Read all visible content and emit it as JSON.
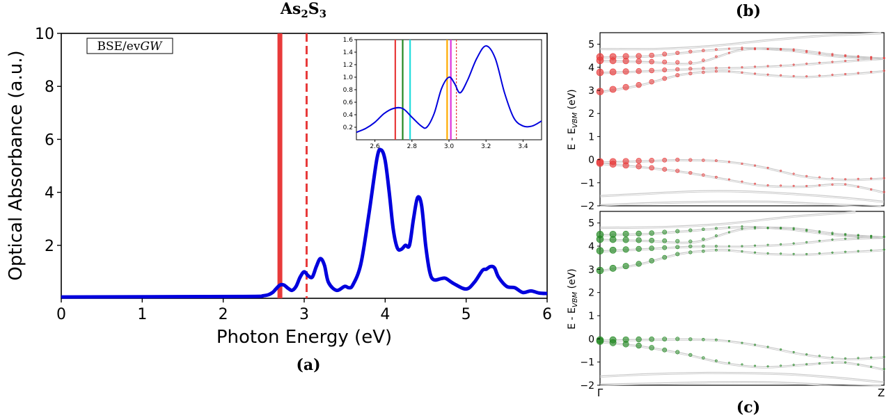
{
  "figure": {
    "title_main": "As",
    "title_sub1": "2",
    "title_mid": "S",
    "title_sub2": "3",
    "label_a": "(a)",
    "label_b": "(b)",
    "label_c": "(c)",
    "method_box": "BSE/ev",
    "method_box_italic": "GW"
  },
  "colors": {
    "spectrum": "#0000dd",
    "red": "#e83a3a",
    "green": "#228822",
    "cyan": "#22dddd",
    "orange": "#ffaa00",
    "violet": "#dd33dd",
    "band": "#c8c8c8"
  },
  "chart_data": [
    {
      "id": "main",
      "type": "line",
      "xlabel": "Photon Energy (eV)",
      "ylabel": "Optical Absorbance (a.u.)",
      "xlim": [
        0,
        6
      ],
      "ylim": [
        0,
        10
      ],
      "xticks": [
        0,
        1,
        2,
        3,
        4,
        5,
        6
      ],
      "yticks": [
        2,
        4,
        6,
        8,
        10
      ],
      "x": [
        0,
        2.2,
        2.5,
        2.6,
        2.65,
        2.7,
        2.75,
        2.8,
        2.85,
        2.9,
        2.95,
        3.0,
        3.05,
        3.1,
        3.15,
        3.2,
        3.25,
        3.3,
        3.4,
        3.5,
        3.55,
        3.6,
        3.7,
        3.8,
        3.9,
        3.95,
        4.0,
        4.05,
        4.1,
        4.15,
        4.2,
        4.25,
        4.3,
        4.35,
        4.4,
        4.45,
        4.5,
        4.55,
        4.6,
        4.7,
        4.75,
        4.85,
        5.0,
        5.1,
        5.2,
        5.25,
        5.3,
        5.35,
        5.4,
        5.5,
        5.6,
        5.7,
        5.8,
        5.9,
        6.0
      ],
      "y": [
        0.05,
        0.07,
        0.1,
        0.2,
        0.35,
        0.5,
        0.5,
        0.38,
        0.3,
        0.45,
        0.8,
        1.0,
        0.85,
        0.8,
        1.2,
        1.5,
        1.25,
        0.6,
        0.3,
        0.45,
        0.4,
        0.5,
        1.3,
        3.2,
        5.3,
        5.6,
        5.2,
        4.0,
        2.6,
        1.9,
        1.85,
        2.0,
        2.0,
        3.0,
        3.8,
        3.5,
        2.0,
        1.0,
        0.7,
        0.75,
        0.75,
        0.55,
        0.35,
        0.6,
        1.05,
        1.1,
        1.2,
        1.15,
        0.8,
        0.45,
        0.4,
        0.22,
        0.28,
        0.2,
        0.18
      ],
      "vlines": [
        {
          "x": 2.7,
          "style": "solid",
          "color": "red"
        },
        {
          "x": 3.03,
          "style": "dashed",
          "color": "red"
        }
      ]
    },
    {
      "id": "inset",
      "type": "line",
      "xlim": [
        2.5,
        3.5
      ],
      "ylim": [
        0,
        1.6
      ],
      "xticks": [
        2.6,
        2.8,
        3.0,
        3.2,
        3.4
      ],
      "yticks": [
        0.2,
        0.4,
        0.6,
        0.8,
        1.0,
        1.2,
        1.4,
        1.6
      ],
      "xtick_labels": [
        "2.6",
        "2.8",
        "3.0",
        "3.2",
        "3.4"
      ],
      "ytick_labels": [
        "0.2",
        "0.4",
        "0.6",
        "0.8",
        "1.0",
        "1.2",
        "1.4",
        "1.6"
      ],
      "x": [
        2.5,
        2.55,
        2.6,
        2.65,
        2.7,
        2.75,
        2.8,
        2.85,
        2.88,
        2.92,
        2.96,
        3.0,
        3.03,
        3.06,
        3.1,
        3.15,
        3.2,
        3.25,
        3.3,
        3.35,
        3.4,
        3.45,
        3.5
      ],
      "y": [
        0.12,
        0.18,
        0.28,
        0.42,
        0.5,
        0.5,
        0.36,
        0.22,
        0.2,
        0.42,
        0.82,
        1.0,
        0.9,
        0.75,
        0.95,
        1.3,
        1.5,
        1.3,
        0.75,
        0.35,
        0.22,
        0.22,
        0.3
      ],
      "vlines": [
        {
          "x": 2.71,
          "style": "solid",
          "color": "red"
        },
        {
          "x": 2.75,
          "style": "solid",
          "color": "green"
        },
        {
          "x": 2.79,
          "style": "solid",
          "color": "cyan"
        },
        {
          "x": 2.99,
          "style": "solid",
          "color": "orange"
        },
        {
          "x": 3.01,
          "style": "solid",
          "color": "violet"
        },
        {
          "x": 3.04,
          "style": "dashed",
          "color": "red"
        }
      ]
    },
    {
      "id": "bands_b",
      "type": "line",
      "ylabel": "E - E",
      "ylabel_sub": "VBM",
      "ylabel_unit": " (eV)",
      "ylim": [
        -2,
        5.5
      ],
      "yticks": [
        -2,
        -1,
        0,
        1,
        2,
        3,
        4,
        5
      ],
      "ytick_labels": [
        "−2",
        "−1",
        "0",
        "1",
        "2",
        "3",
        "4",
        "5"
      ],
      "color_key": "red",
      "bands": [
        [
          4.82,
          4.82,
          4.95,
          5.2,
          5.4,
          5.6
        ],
        [
          4.45,
          4.5,
          4.7,
          4.85,
          4.75,
          4.5,
          4.4
        ],
        [
          4.3,
          4.25,
          4.2,
          4.78,
          4.8,
          4.55,
          4.4
        ],
        [
          3.78,
          3.85,
          3.95,
          4.0,
          4.1,
          4.25,
          4.4
        ],
        [
          2.95,
          3.25,
          3.7,
          3.85,
          3.7,
          3.6,
          3.7,
          3.85
        ],
        [
          -0.1,
          -0.05,
          0.0,
          -0.05,
          -0.3,
          -0.7,
          -0.85,
          -0.8
        ],
        [
          -0.15,
          -0.3,
          -0.5,
          -0.8,
          -1.1,
          -1.15,
          -1.05,
          -1.4
        ],
        [
          -1.55,
          -1.45,
          -1.35,
          -1.35,
          -1.45,
          -1.6,
          -1.8
        ],
        [
          -1.95,
          -1.85,
          -1.8,
          -1.8,
          -1.9,
          -2.0
        ]
      ],
      "x_frac": [
        0,
        0.17,
        0.33,
        0.5,
        0.67,
        0.83,
        1.0,
        1.0
      ]
    },
    {
      "id": "bands_c",
      "type": "line",
      "ylabel": "E - E",
      "ylabel_sub": "VBM",
      "ylabel_unit": " (eV)",
      "ylim": [
        -2,
        5.5
      ],
      "yticks": [
        -2,
        -1,
        0,
        1,
        2,
        3,
        4,
        5
      ],
      "ytick_labels": [
        "−2",
        "−1",
        "0",
        "1",
        "2",
        "3",
        "4",
        "5"
      ],
      "xtick_labels": [
        "Γ",
        "Z"
      ],
      "color_key": "green",
      "bands": [
        [
          4.82,
          4.85,
          5.0,
          5.3,
          5.5
        ],
        [
          4.5,
          4.55,
          4.7,
          4.85,
          4.75,
          4.5,
          4.4
        ],
        [
          4.3,
          4.25,
          4.2,
          4.75,
          4.8,
          4.55,
          4.4
        ],
        [
          3.8,
          3.9,
          4.0,
          4.0,
          4.1,
          4.3,
          4.4
        ],
        [
          2.95,
          3.25,
          3.7,
          3.85,
          3.7,
          3.65,
          3.75,
          3.85
        ],
        [
          -0.05,
          -0.02,
          0.0,
          -0.05,
          -0.3,
          -0.65,
          -0.85,
          -0.78
        ],
        [
          -0.1,
          -0.3,
          -0.6,
          -1.0,
          -1.2,
          -1.1,
          -1.0,
          -1.3
        ],
        [
          -1.6,
          -1.5,
          -1.45,
          -1.45,
          -1.5,
          -1.65,
          -1.85
        ],
        [
          -1.95,
          -1.9,
          -1.85,
          -1.85,
          -1.95,
          -2.0
        ]
      ],
      "x_frac": [
        0,
        0.17,
        0.33,
        0.5,
        0.67,
        0.83,
        1.0,
        1.0
      ]
    }
  ]
}
